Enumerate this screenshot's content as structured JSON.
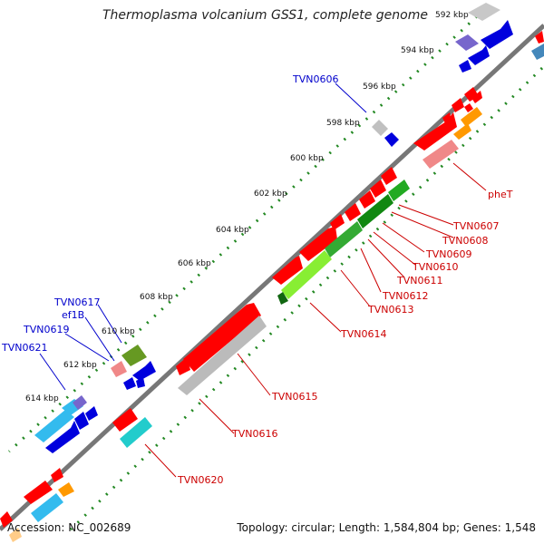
{
  "title": "Thermoplasma volcanium GSS1, complete genome",
  "footer": {
    "accession": "Accession: NC_002689",
    "summary": "Topology: circular; Length: 1,584,804 bp; Genes: 1,548"
  },
  "ticks": [
    "592 kbp",
    "594 kbp",
    "596 kbp",
    "598 kbp",
    "600 kbp",
    "602 kbp",
    "604 kbp",
    "606 kbp",
    "608 kbp",
    "610 kbp",
    "612 kbp",
    "614 kbp"
  ],
  "labels_blue": [
    "TVN0606",
    "TVN0617",
    "ef1B",
    "TVN0619",
    "TVN0621"
  ],
  "labels_red": [
    "pheT",
    "TVN0607",
    "TVN0608",
    "TVN0609",
    "TVN0610",
    "TVN0611",
    "TVN0612",
    "TVN0613",
    "TVN0614",
    "TVN0615",
    "TVN0616",
    "TVN0620"
  ],
  "colors": {
    "red": "#ff0000",
    "blue": "#0000dd",
    "green": "#118811",
    "grey": "#bbbbbb",
    "backbone": "#777777"
  }
}
